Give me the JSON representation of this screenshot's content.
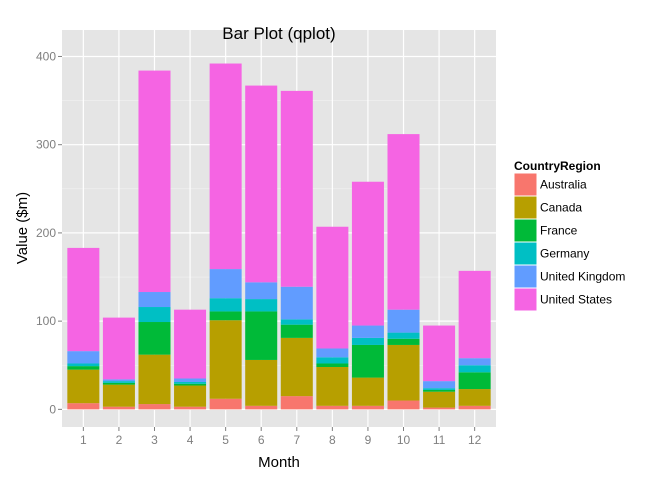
{
  "chart_data": {
    "type": "bar",
    "stacked": true,
    "title": "Bar Plot (qplot)",
    "xlabel": "Month",
    "ylabel": "Value ($m)",
    "categories": [
      "1",
      "2",
      "3",
      "4",
      "5",
      "6",
      "7",
      "8",
      "9",
      "10",
      "11",
      "12"
    ],
    "ylim": [
      -20,
      430
    ],
    "yticks": [
      0,
      100,
      200,
      300,
      400
    ],
    "grid": true,
    "legend": {
      "title": "CountryRegion",
      "position": "right"
    },
    "series": [
      {
        "name": "Australia",
        "color": "#F8766D",
        "values": [
          7,
          3,
          6,
          3,
          12,
          4,
          15,
          4,
          4,
          10,
          2,
          4
        ]
      },
      {
        "name": "Canada",
        "color": "#B79F00",
        "values": [
          38,
          25,
          56,
          24,
          89,
          52,
          66,
          44,
          32,
          63,
          18,
          19
        ]
      },
      {
        "name": "France",
        "color": "#00BA38",
        "values": [
          4,
          2,
          37,
          2,
          10,
          55,
          15,
          4,
          37,
          7,
          2,
          19
        ]
      },
      {
        "name": "Germany",
        "color": "#00BFC4",
        "values": [
          3,
          2,
          17,
          2,
          15,
          14,
          6,
          7,
          8,
          7,
          2,
          8
        ]
      },
      {
        "name": "United Kingdom",
        "color": "#619CFF",
        "values": [
          14,
          2,
          17,
          4,
          33,
          19,
          37,
          10,
          14,
          26,
          8,
          8
        ]
      },
      {
        "name": "United States",
        "color": "#F564E3",
        "values": [
          117,
          70,
          251,
          78,
          233,
          223,
          222,
          138,
          163,
          199,
          63,
          99
        ]
      }
    ]
  }
}
